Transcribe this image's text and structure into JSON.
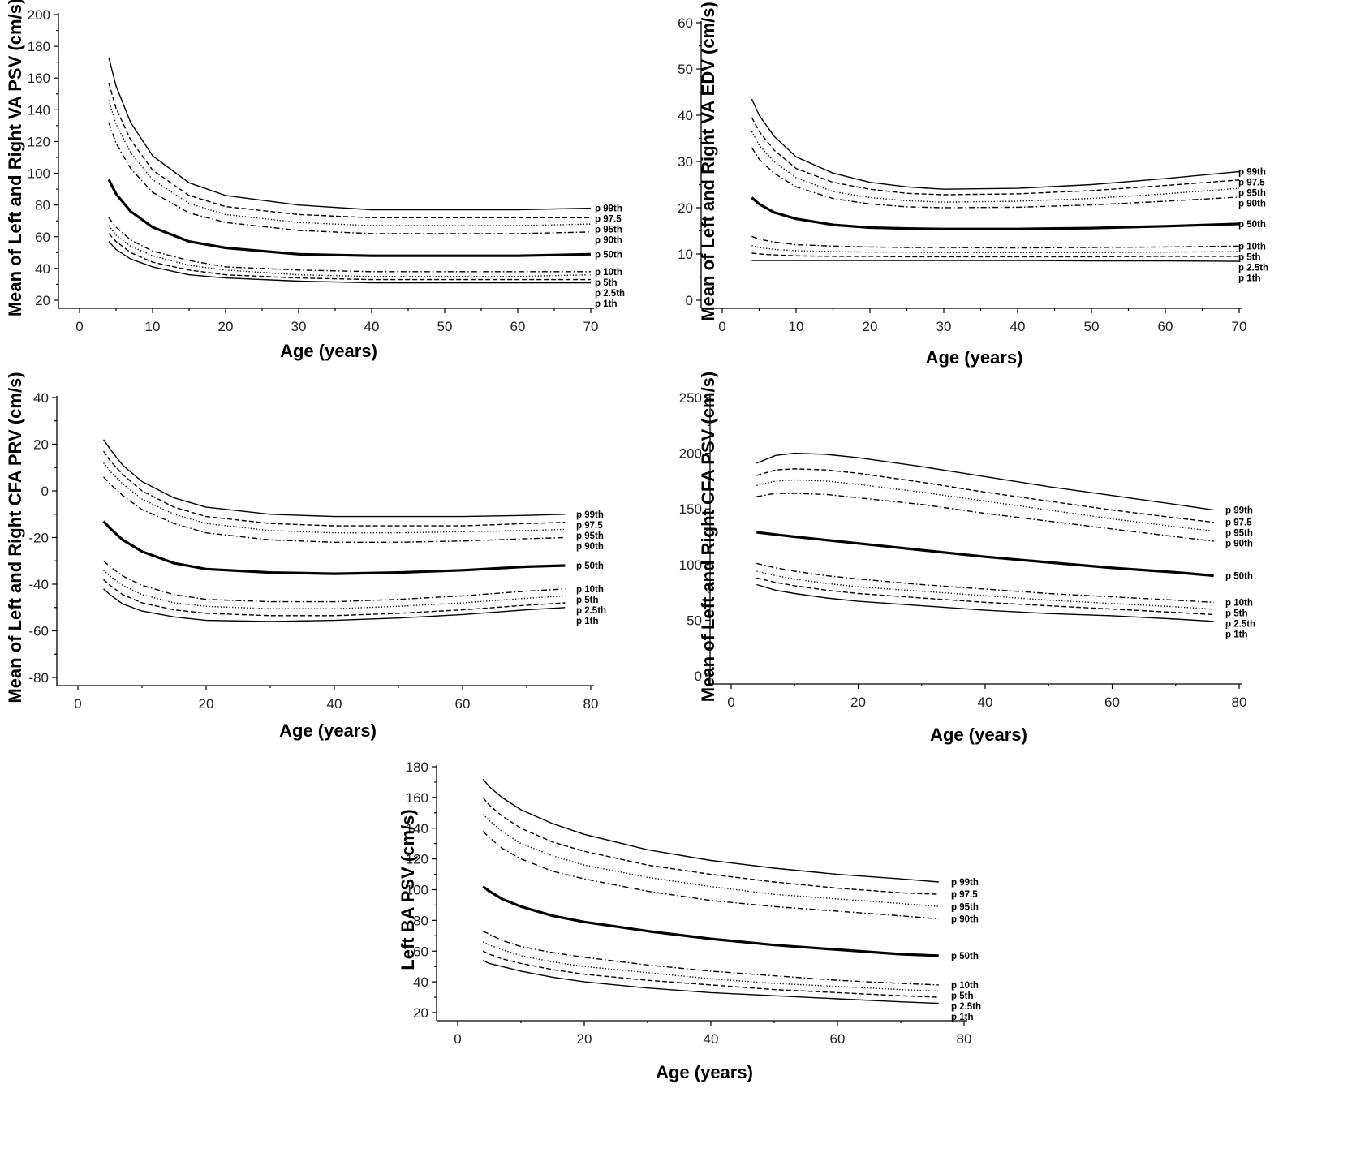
{
  "chart_data": [
    {
      "type": "line",
      "xlabel": "Age (years)",
      "ylabel": "Mean of Left and Right VA PSV (cm/s)",
      "xlim": [
        0,
        70
      ],
      "ylim": [
        20,
        200
      ],
      "xticks": [
        0,
        10,
        20,
        30,
        40,
        50,
        60,
        70
      ],
      "yticks": [
        20,
        40,
        60,
        80,
        100,
        120,
        140,
        160,
        180,
        200
      ],
      "x": [
        4,
        5,
        7,
        10,
        15,
        20,
        30,
        40,
        50,
        60,
        70
      ],
      "series": [
        {
          "name": "p 99th",
          "style": "solid",
          "values": [
            173,
            155,
            132,
            111,
            94,
            86,
            80,
            77,
            77,
            77,
            78
          ]
        },
        {
          "name": "p 97.5",
          "style": "dashed",
          "values": [
            157,
            141,
            121,
            102,
            86,
            79,
            74,
            72,
            72,
            72,
            72
          ]
        },
        {
          "name": "p 95th",
          "style": "dotted",
          "values": [
            146,
            131,
            113,
            96,
            81,
            74,
            69,
            67,
            67,
            67,
            68
          ]
        },
        {
          "name": "p 90th",
          "style": "dashdot",
          "values": [
            132,
            119,
            103,
            88,
            75,
            69,
            64,
            62,
            62,
            62,
            63
          ]
        },
        {
          "name": "p 50th",
          "style": "bold",
          "values": [
            96,
            87,
            76,
            66,
            57,
            53,
            49,
            48,
            48,
            48,
            49
          ]
        },
        {
          "name": "p 10th",
          "style": "dashdot",
          "values": [
            72,
            66,
            58,
            51,
            45,
            41,
            39,
            38,
            38,
            38,
            38
          ]
        },
        {
          "name": "p 5th",
          "style": "dotted",
          "values": [
            67,
            61,
            54,
            48,
            42,
            39,
            36,
            35,
            35,
            35,
            36
          ]
        },
        {
          "name": "p 2.5th",
          "style": "dashed",
          "values": [
            62,
            57,
            50,
            44,
            39,
            36,
            34,
            33,
            33,
            33,
            33
          ]
        },
        {
          "name": "p 1th",
          "style": "solid",
          "values": [
            57,
            52,
            46,
            41,
            36,
            34,
            32,
            31,
            31,
            31,
            31
          ]
        }
      ]
    },
    {
      "type": "line",
      "xlabel": "Age (years)",
      "ylabel": "Mean of Left and Right VA EDV (cm/s)",
      "xlim": [
        0,
        70
      ],
      "ylim": [
        0,
        60
      ],
      "xticks": [
        0,
        10,
        20,
        30,
        40,
        50,
        60,
        70
      ],
      "yticks": [
        0,
        10,
        20,
        30,
        40,
        50,
        60
      ],
      "x": [
        4,
        5,
        7,
        10,
        15,
        20,
        25,
        30,
        40,
        50,
        60,
        70
      ],
      "series": [
        {
          "name": "p 99th",
          "style": "solid",
          "values": [
            43.5,
            40,
            35.5,
            31,
            27.5,
            25.5,
            24.5,
            24,
            24.2,
            25,
            26.3,
            27.8
          ]
        },
        {
          "name": "p 97.5",
          "style": "dashed",
          "values": [
            39.5,
            36.5,
            32.5,
            28.5,
            25.5,
            24,
            23.1,
            22.8,
            23,
            23.7,
            24.8,
            26
          ]
        },
        {
          "name": "p 95th",
          "style": "dotted",
          "values": [
            36.5,
            33.5,
            30,
            26.5,
            23.5,
            22.2,
            21.5,
            21.2,
            21.4,
            22,
            23,
            24.2
          ]
        },
        {
          "name": "p 90th",
          "style": "dashdot",
          "values": [
            33,
            30.5,
            27.5,
            24.5,
            22,
            20.8,
            20.2,
            20,
            20.1,
            20.6,
            21.4,
            22.3
          ]
        },
        {
          "name": "p 50th",
          "style": "bold",
          "values": [
            22.2,
            20.8,
            19,
            17.6,
            16.3,
            15.7,
            15.5,
            15.4,
            15.4,
            15.6,
            16,
            16.5
          ]
        },
        {
          "name": "p 10th",
          "style": "dashdot",
          "values": [
            13.8,
            13.2,
            12.6,
            12,
            11.7,
            11.5,
            11.4,
            11.4,
            11.3,
            11.4,
            11.5,
            11.7
          ]
        },
        {
          "name": "p 5th",
          "style": "dotted",
          "values": [
            11.8,
            11.4,
            11,
            10.7,
            10.5,
            10.4,
            10.4,
            10.3,
            10.3,
            10.3,
            10.4,
            10.5
          ]
        },
        {
          "name": "p 2.5th",
          "style": "dashed",
          "values": [
            10.2,
            10,
            9.8,
            9.6,
            9.5,
            9.5,
            9.4,
            9.4,
            9.4,
            9.4,
            9.5,
            9.5
          ]
        },
        {
          "name": "p 1th",
          "style": "solid",
          "values": [
            8.6,
            8.6,
            8.6,
            8.6,
            8.6,
            8.6,
            8.6,
            8.6,
            8.6,
            8.5,
            8.5,
            8.4
          ]
        }
      ]
    },
    {
      "type": "line",
      "xlabel": "Age (years)",
      "ylabel": "Mean of Left and Right CFA PRV (cm/s)",
      "xlim": [
        0,
        80
      ],
      "ylim": [
        -80,
        40
      ],
      "xticks": [
        0,
        20,
        40,
        60,
        80
      ],
      "yticks": [
        -80,
        -60,
        -40,
        -20,
        0,
        20,
        40
      ],
      "x": [
        4,
        5,
        7,
        10,
        15,
        20,
        30,
        40,
        50,
        60,
        70,
        76
      ],
      "series": [
        {
          "name": "p 99th",
          "style": "solid",
          "values": [
            22,
            18,
            11,
            4,
            -3,
            -7,
            -10,
            -11,
            -11,
            -11,
            -10.5,
            -10
          ]
        },
        {
          "name": "p 97.5",
          "style": "dashed",
          "values": [
            17,
            13,
            7,
            0,
            -7,
            -11,
            -14,
            -15,
            -15,
            -15,
            -14,
            -13.5
          ]
        },
        {
          "name": "p 95th",
          "style": "dotted",
          "values": [
            12,
            8.5,
            3,
            -3.5,
            -10,
            -14,
            -17,
            -18,
            -18,
            -17.5,
            -17,
            -16.5
          ]
        },
        {
          "name": "p 90th",
          "style": "dashdot",
          "values": [
            6,
            3,
            -2,
            -8,
            -14,
            -18,
            -21,
            -22,
            -22,
            -21.5,
            -20.5,
            -20
          ]
        },
        {
          "name": "p 50th",
          "style": "bold",
          "values": [
            -13,
            -16,
            -21,
            -26,
            -31,
            -33.5,
            -35,
            -35.5,
            -35,
            -34,
            -32.5,
            -32
          ]
        },
        {
          "name": "p 10th",
          "style": "dashdot",
          "values": [
            -30,
            -32.5,
            -36.5,
            -40.5,
            -44.5,
            -46.5,
            -47.5,
            -47.5,
            -46.5,
            -45,
            -43,
            -42
          ]
        },
        {
          "name": "p 5th",
          "style": "dotted",
          "values": [
            -34,
            -36.5,
            -40.5,
            -44.5,
            -48,
            -49.5,
            -50.5,
            -50.5,
            -49.5,
            -48,
            -46,
            -45
          ]
        },
        {
          "name": "p 2.5th",
          "style": "dashed",
          "values": [
            -38,
            -40.5,
            -44.5,
            -48,
            -51,
            -52.5,
            -53.5,
            -53.5,
            -52.5,
            -51,
            -49,
            -48
          ]
        },
        {
          "name": "p 1th",
          "style": "solid",
          "values": [
            -42,
            -44.5,
            -48.5,
            -51.5,
            -54,
            -55.5,
            -56,
            -55.5,
            -54.5,
            -53,
            -51,
            -50
          ]
        }
      ]
    },
    {
      "type": "line",
      "xlabel": "Age (years)",
      "ylabel": "Mean of Left and Right CFA PSV (cm/s)",
      "xlim": [
        0,
        80
      ],
      "ylim": [
        0,
        250
      ],
      "xticks": [
        0,
        20,
        40,
        60,
        80
      ],
      "yticks": [
        0,
        50,
        100,
        150,
        200,
        250
      ],
      "x": [
        4,
        7,
        10,
        15,
        20,
        30,
        40,
        50,
        60,
        70,
        76
      ],
      "series": [
        {
          "name": "p 99th",
          "style": "solid",
          "values": [
            191,
            198,
            200,
            199,
            196,
            188,
            179,
            170,
            162,
            154,
            149
          ]
        },
        {
          "name": "p 97.5",
          "style": "dashed",
          "values": [
            180,
            185,
            186,
            185,
            182,
            174,
            165,
            157,
            149,
            142,
            138
          ]
        },
        {
          "name": "p 95th",
          "style": "dotted",
          "values": [
            171,
            175,
            176,
            175,
            172,
            165,
            157,
            149,
            141,
            134,
            130
          ]
        },
        {
          "name": "p 90th",
          "style": "dashdot",
          "values": [
            161,
            164,
            164,
            163,
            160,
            154,
            146,
            139,
            132,
            125,
            121
          ]
        },
        {
          "name": "p 50th",
          "style": "bold",
          "values": [
            129,
            127,
            125,
            122,
            119,
            113,
            107,
            102,
            97,
            93,
            90
          ]
        },
        {
          "name": "p 10th",
          "style": "dashdot",
          "values": [
            101,
            97,
            94,
            90,
            87,
            82,
            78,
            74,
            71,
            68,
            66
          ]
        },
        {
          "name": "p 5th",
          "style": "dotted",
          "values": [
            94,
            90,
            87,
            83,
            80,
            76,
            72,
            68,
            65,
            62,
            60
          ]
        },
        {
          "name": "p 2.5th",
          "style": "dashed",
          "values": [
            88,
            84,
            81,
            77,
            74,
            70,
            66,
            63,
            60,
            57,
            55
          ]
        },
        {
          "name": "p 1th",
          "style": "solid",
          "values": [
            82,
            77,
            74,
            70,
            67,
            63,
            59,
            56,
            54,
            51,
            49
          ]
        }
      ]
    },
    {
      "type": "line",
      "xlabel": "Age (years)",
      "ylabel": "Left BA PSV (cm/s)",
      "xlim": [
        0,
        80
      ],
      "ylim": [
        20,
        180
      ],
      "xticks": [
        0,
        20,
        40,
        60,
        80
      ],
      "yticks": [
        20,
        40,
        60,
        80,
        100,
        120,
        140,
        160,
        180
      ],
      "x": [
        4,
        5,
        7,
        10,
        15,
        20,
        30,
        40,
        50,
        60,
        70,
        76
      ],
      "series": [
        {
          "name": "p 99th",
          "style": "solid",
          "values": [
            172,
            167,
            160,
            152,
            143,
            136,
            126,
            119,
            114,
            110,
            107,
            105
          ]
        },
        {
          "name": "p 97.5",
          "style": "dashed",
          "values": [
            160,
            155,
            148,
            140,
            131,
            125,
            116,
            110,
            105,
            101,
            98,
            97
          ]
        },
        {
          "name": "p 95th",
          "style": "dotted",
          "values": [
            149,
            145,
            138,
            130,
            122,
            116,
            108,
            102,
            97,
            94,
            91,
            89
          ]
        },
        {
          "name": "p 90th",
          "style": "dashdot",
          "values": [
            138,
            134,
            127,
            120,
            112,
            107,
            99,
            93,
            89,
            86,
            83,
            81
          ]
        },
        {
          "name": "p 50th",
          "style": "bold",
          "values": [
            102,
            99,
            94,
            89,
            83,
            79,
            73,
            68,
            64,
            61,
            58,
            57
          ]
        },
        {
          "name": "p 10th",
          "style": "dashdot",
          "values": [
            73,
            71,
            67,
            63,
            59,
            56,
            51,
            47,
            44,
            41,
            39,
            38
          ]
        },
        {
          "name": "p 5th",
          "style": "dotted",
          "values": [
            66,
            64,
            61,
            57,
            53,
            50,
            46,
            42,
            39,
            37,
            35,
            34
          ]
        },
        {
          "name": "p 2.5th",
          "style": "dashed",
          "values": [
            60,
            58,
            55,
            52,
            48,
            45,
            41,
            38,
            35,
            33,
            31,
            30
          ]
        },
        {
          "name": "p 1th",
          "style": "solid",
          "values": [
            54,
            52,
            50,
            47,
            43,
            40,
            36,
            33,
            31,
            29,
            27,
            26
          ]
        }
      ]
    }
  ]
}
